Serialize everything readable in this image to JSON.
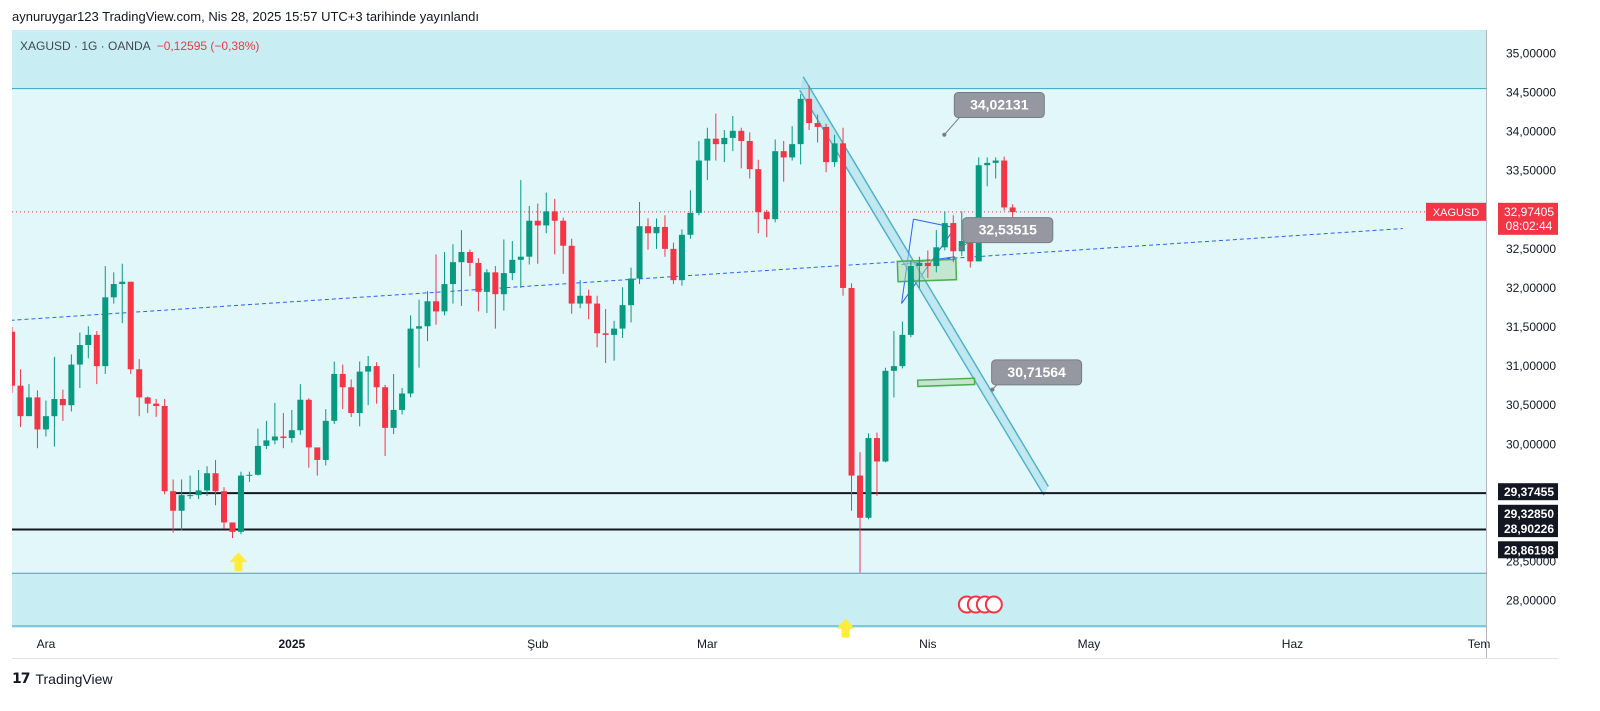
{
  "header": {
    "published_by": "aynuruygar123 TradingView.com, Nis 28, 2025 15:57 UTC+3 tarihinde yayınlandı"
  },
  "legend": {
    "symbol": "XAGUSD · 1G · OANDA",
    "change": "−0,12595 (−0,38%)"
  },
  "branding": {
    "logo_text": "TradingView",
    "logo_mark": "17"
  },
  "colors": {
    "up": "#089981",
    "down": "#f23645",
    "zone_fill": "#e2f7fa",
    "zone_band": "#c8eef3",
    "line_black": "#131722",
    "trend_blue": "#2962ff",
    "channel": "#35a7c2",
    "green_box": "#4caf50",
    "arrow": "#ffeb3b"
  },
  "chart_data": {
    "type": "candlestick",
    "symbol": "XAGUSD",
    "title": "XAGUSD · 1G · OANDA",
    "ylim": [
      27.65,
      35.3
    ],
    "y_ticks": [
      "35,00000",
      "34,50000",
      "34,00000",
      "33,50000",
      "32,50000",
      "32,00000",
      "31,50000",
      "31,00000",
      "30,50000",
      "30,00000",
      "28,50000",
      "28,00000"
    ],
    "x_labels": [
      "Ara",
      "2025",
      "Şub",
      "Mar",
      "Nis",
      "May",
      "Haz",
      "Tem"
    ],
    "x_label_pos": [
      4,
      33,
      62,
      82,
      108,
      127,
      151,
      173
    ],
    "price_label": {
      "symbol": "XAGUSD",
      "price": "32,97405",
      "countdown": "08:02:44",
      "value": 32.97405
    },
    "level_labels": [
      {
        "text": "29,37455",
        "value": 29.37455
      },
      {
        "text": "29,32850",
        "value": 29.3285
      },
      {
        "text": "28,90226",
        "value": 28.90226
      },
      {
        "text": "28,86198",
        "value": 28.86198
      }
    ],
    "callouts": [
      {
        "text": "34,02131",
        "value": 34.02131
      },
      {
        "text": "32,53515",
        "value": 32.53515
      },
      {
        "text": "30,71564",
        "value": 30.71564
      }
    ],
    "candles": [
      [
        31.44,
        30.75,
        31.5,
        30.66
      ],
      [
        30.75,
        30.36,
        30.96,
        30.22
      ],
      [
        30.36,
        30.6,
        30.77,
        30.45
      ],
      [
        30.6,
        30.19,
        30.69,
        29.95
      ],
      [
        30.19,
        30.36,
        30.56,
        30.1
      ],
      [
        30.36,
        30.58,
        31.12,
        29.97
      ],
      [
        30.58,
        30.5,
        30.7,
        30.3
      ],
      [
        30.5,
        31.02,
        31.15,
        30.42
      ],
      [
        31.02,
        31.27,
        31.43,
        30.72
      ],
      [
        31.27,
        31.4,
        31.51,
        31.1
      ],
      [
        31.4,
        31.0,
        31.45,
        30.77
      ],
      [
        31.0,
        31.88,
        32.28,
        30.9
      ],
      [
        31.88,
        32.05,
        32.2,
        31.8
      ],
      [
        32.05,
        32.08,
        32.31,
        31.55
      ],
      [
        32.08,
        30.96,
        32.05,
        30.9
      ],
      [
        30.96,
        30.6,
        31.09,
        30.36
      ],
      [
        30.6,
        30.52,
        30.61,
        30.4
      ],
      [
        30.52,
        30.49,
        30.58,
        30.35
      ],
      [
        30.49,
        29.4,
        30.58,
        29.36
      ],
      [
        29.4,
        29.15,
        29.55,
        28.87
      ],
      [
        29.15,
        29.35,
        29.55,
        28.9
      ],
      [
        29.35,
        29.35,
        29.6,
        29.3
      ],
      [
        29.35,
        29.41,
        29.67,
        29.3
      ],
      [
        29.41,
        29.63,
        29.72,
        29.34
      ],
      [
        29.63,
        29.4,
        29.8,
        29.22
      ],
      [
        29.4,
        29.0,
        29.45,
        28.92
      ],
      [
        29.0,
        28.88,
        29.0,
        28.8
      ],
      [
        28.88,
        29.6,
        29.65,
        28.85
      ],
      [
        29.6,
        29.61,
        29.65,
        29.52
      ],
      [
        29.61,
        29.98,
        30.2,
        29.6
      ],
      [
        29.98,
        30.05,
        30.3,
        29.94
      ],
      [
        30.05,
        30.1,
        30.53,
        30.0
      ],
      [
        30.1,
        30.08,
        30.4,
        29.95
      ],
      [
        30.08,
        30.18,
        30.44,
        30.02
      ],
      [
        30.18,
        30.57,
        30.77,
        30.12
      ],
      [
        30.57,
        29.96,
        30.59,
        29.7
      ],
      [
        29.96,
        29.8,
        29.94,
        29.6
      ],
      [
        29.8,
        30.3,
        30.45,
        29.73
      ],
      [
        30.3,
        30.9,
        31.06,
        30.26
      ],
      [
        30.9,
        30.73,
        31.02,
        30.45
      ],
      [
        30.73,
        30.4,
        30.83,
        30.35
      ],
      [
        30.4,
        30.93,
        31.06,
        30.23
      ],
      [
        30.93,
        31.0,
        31.13,
        30.5
      ],
      [
        31.0,
        30.73,
        31.05,
        30.52
      ],
      [
        30.73,
        30.21,
        30.76,
        29.85
      ],
      [
        30.21,
        30.44,
        30.9,
        30.13
      ],
      [
        30.44,
        30.65,
        30.72,
        30.38
      ],
      [
        30.65,
        31.48,
        31.65,
        30.6
      ],
      [
        31.48,
        31.51,
        31.85,
        30.98
      ],
      [
        31.51,
        31.83,
        31.96,
        31.32
      ],
      [
        31.83,
        31.7,
        32.43,
        31.53
      ],
      [
        31.7,
        32.05,
        32.46,
        31.65
      ],
      [
        32.05,
        32.33,
        32.56,
        31.8
      ],
      [
        32.33,
        32.46,
        32.74,
        31.77
      ],
      [
        32.46,
        32.32,
        32.49,
        32.15
      ],
      [
        32.32,
        31.95,
        32.38,
        31.7
      ],
      [
        31.95,
        32.2,
        32.24,
        31.68
      ],
      [
        32.2,
        31.92,
        32.28,
        31.48
      ],
      [
        31.92,
        32.19,
        32.62,
        31.71
      ],
      [
        32.19,
        32.36,
        32.6,
        32.1
      ],
      [
        32.36,
        32.4,
        33.38,
        32.0
      ],
      [
        32.4,
        32.86,
        33.05,
        32.3
      ],
      [
        32.86,
        32.8,
        33.08,
        32.31
      ],
      [
        32.8,
        32.98,
        33.22,
        32.7
      ],
      [
        32.98,
        32.86,
        33.14,
        32.43
      ],
      [
        32.86,
        32.54,
        32.9,
        32.18
      ],
      [
        32.54,
        31.8,
        32.63,
        31.67
      ],
      [
        31.8,
        31.9,
        32.1,
        31.74
      ],
      [
        31.9,
        31.8,
        31.98,
        31.6
      ],
      [
        31.8,
        31.42,
        31.9,
        31.24
      ],
      [
        31.42,
        31.4,
        31.73,
        31.04
      ],
      [
        31.4,
        31.48,
        31.58,
        31.07
      ],
      [
        31.48,
        31.78,
        32.01,
        31.36
      ],
      [
        31.78,
        32.12,
        32.26,
        31.56
      ],
      [
        32.12,
        32.79,
        33.1,
        32.05
      ],
      [
        32.79,
        32.7,
        32.89,
        32.49
      ],
      [
        32.7,
        32.78,
        32.89,
        32.5
      ],
      [
        32.78,
        32.5,
        32.93,
        32.4
      ],
      [
        32.5,
        32.1,
        32.58,
        32.05
      ],
      [
        32.1,
        32.68,
        32.75,
        32.03
      ],
      [
        32.68,
        32.96,
        33.25,
        32.63
      ],
      [
        32.96,
        33.63,
        33.88,
        32.93
      ],
      [
        33.63,
        33.91,
        34.05,
        33.38
      ],
      [
        33.91,
        33.84,
        34.23,
        33.63
      ],
      [
        33.84,
        33.92,
        34.02,
        33.61
      ],
      [
        33.92,
        34.01,
        34.2,
        33.75
      ],
      [
        34.01,
        33.88,
        34.05,
        33.53
      ],
      [
        33.88,
        33.52,
        33.99,
        33.4
      ],
      [
        33.52,
        32.97,
        33.64,
        32.7
      ],
      [
        32.97,
        32.88,
        33.0,
        32.65
      ],
      [
        32.88,
        33.75,
        33.9,
        32.84
      ],
      [
        33.75,
        33.67,
        33.88,
        33.36
      ],
      [
        33.67,
        33.84,
        34.07,
        33.63
      ],
      [
        33.84,
        34.42,
        34.48,
        33.58
      ],
      [
        34.42,
        34.11,
        34.59,
        34.02
      ],
      [
        34.11,
        34.06,
        34.22,
        33.86
      ],
      [
        34.06,
        33.61,
        34.1,
        33.48
      ],
      [
        33.61,
        33.85,
        33.96,
        33.55
      ],
      [
        33.85,
        32.0,
        34.05,
        31.9
      ],
      [
        32.0,
        29.6,
        32.06,
        29.15
      ],
      [
        29.6,
        29.06,
        29.9,
        28.36
      ],
      [
        29.06,
        30.08,
        30.14,
        29.04
      ],
      [
        30.08,
        29.78,
        30.15,
        29.34
      ],
      [
        29.78,
        30.94,
        30.98,
        29.77
      ],
      [
        30.94,
        31.0,
        31.45,
        30.6
      ],
      [
        31.0,
        31.4,
        31.57,
        30.97
      ],
      [
        31.4,
        32.28,
        32.35,
        31.37
      ],
      [
        32.28,
        32.32,
        32.4,
        32.0
      ],
      [
        32.32,
        32.28,
        32.48,
        32.13
      ],
      [
        32.28,
        32.52,
        32.74,
        32.2
      ],
      [
        32.52,
        32.83,
        32.98,
        32.48
      ],
      [
        32.83,
        32.47,
        32.93,
        32.33
      ],
      [
        32.47,
        32.6,
        32.98,
        32.41
      ],
      [
        32.6,
        32.34,
        32.88,
        32.26
      ],
      [
        32.34,
        33.57,
        33.67,
        32.4
      ],
      [
        33.57,
        33.6,
        33.67,
        33.3
      ],
      [
        33.6,
        33.63,
        33.67,
        33.4
      ],
      [
        33.63,
        33.03,
        33.68,
        32.99
      ],
      [
        33.03,
        32.97,
        33.07,
        32.73
      ]
    ],
    "candle_dates_range": [
      "Ara",
      "Nis"
    ],
    "horizontal_levels": [
      {
        "value": 29.375,
        "x_start": 19.3,
        "style": "solid-black"
      },
      {
        "value": 28.91,
        "x_start": 0,
        "style": "solid-black"
      }
    ],
    "rectangles": [
      {
        "name": "upper-zone-band",
        "y_from": 34.55,
        "y_to": 35.3
      },
      {
        "name": "middle-zone",
        "y_from": 28.35,
        "y_to": 34.55
      },
      {
        "name": "lower-zone-band",
        "y_from": 27.65,
        "y_to": 28.35
      },
      {
        "name": "green-box-upper",
        "x_from": 104.4,
        "x_to": 111.3,
        "y_from": 32.08,
        "y_to": 32.34
      },
      {
        "name": "green-box-lower",
        "x_from": 106.8,
        "x_to": 113.5,
        "y_from": 30.74,
        "y_to": 30.82
      }
    ],
    "trendlines": [
      {
        "name": "rising-trendline",
        "style": "dashed-blue",
        "x1": -1,
        "y1": 31.58,
        "x2": 164,
        "y2": 32.76
      },
      {
        "name": "falling-channel-a",
        "style": "channel",
        "x1": 93.3,
        "y1": 34.7,
        "x2": 122.2,
        "y2": 29.46
      },
      {
        "name": "falling-channel-b",
        "style": "channel",
        "x1": 92.9,
        "y1": 34.53,
        "x2": 121.7,
        "y2": 29.35
      },
      {
        "name": "triangle-upper",
        "style": "thin-blue",
        "x1": 106.3,
        "y1": 32.88,
        "x2": 111.2,
        "y2": 32.77
      },
      {
        "name": "triangle-lower",
        "style": "thin-blue",
        "x1": 104.9,
        "y1": 31.8,
        "x2": 111.2,
        "y2": 32.77
      },
      {
        "name": "triangle-left",
        "style": "thin-blue",
        "x1": 106.3,
        "y1": 32.88,
        "x2": 104.9,
        "y2": 31.8
      },
      {
        "name": "triangle-base",
        "style": "thin-blue",
        "x1": 104.9,
        "y1": 32.3,
        "x2": 111.2,
        "y2": 32.4
      }
    ],
    "arrows": [
      {
        "name": "arrow-up-december",
        "x": 26.7,
        "y": 28.62
      },
      {
        "name": "arrow-up-april",
        "x": 98.3,
        "y": 27.77
      }
    ],
    "event_markers_x": [
      112.6
    ]
  }
}
